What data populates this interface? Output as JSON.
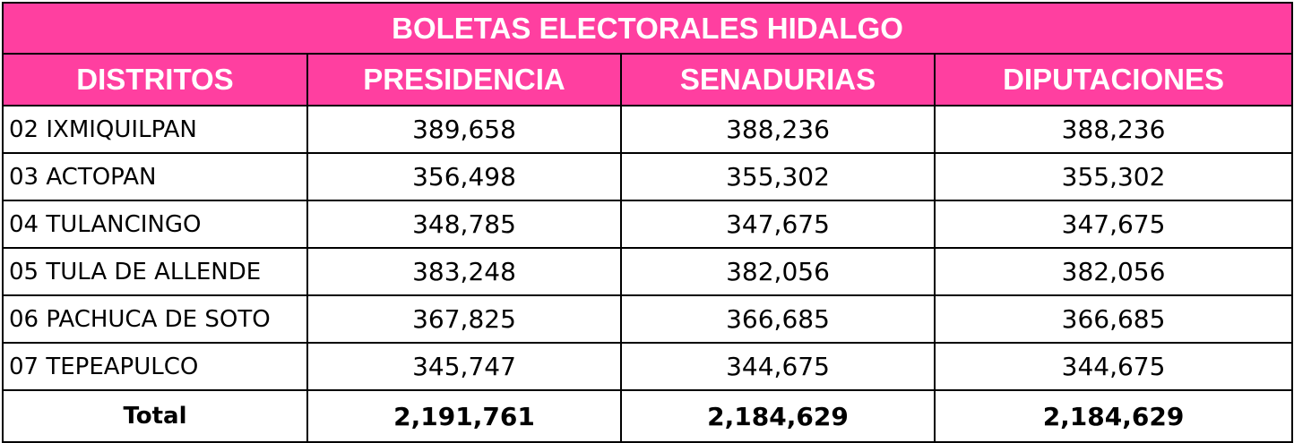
{
  "title": "BOLETAS ELECTORALES HIDALGO",
  "headers": [
    "DISTRITOS",
    "PRESIDENCIA",
    "SENADURIAS",
    "DIPUTACIONES"
  ],
  "rows": [
    {
      "distrito": "02 IXMIQUILPAN",
      "presidencia": "389,658",
      "senadurias": "388,236",
      "diputaciones": "388,236"
    },
    {
      "distrito": "03 ACTOPAN",
      "presidencia": "356,498",
      "senadurias": "355,302",
      "diputaciones": "355,302"
    },
    {
      "distrito": "04 TULANCINGO",
      "presidencia": "348,785",
      "senadurias": "347,675",
      "diputaciones": "347,675"
    },
    {
      "distrito": "05 TULA DE ALLENDE",
      "presidencia": "383,248",
      "senadurias": "382,056",
      "diputaciones": "382,056"
    },
    {
      "distrito": "06 PACHUCA DE SOTO",
      "presidencia": "367,825",
      "senadurias": "366,685",
      "diputaciones": "366,685"
    },
    {
      "distrito": "07 TEPEAPULCO",
      "presidencia": "345,747",
      "senadurias": "344,675",
      "diputaciones": "344,675"
    }
  ],
  "total": {
    "label": "Total",
    "presidencia": "2,191,761",
    "senadurias": "2,184,629",
    "diputaciones": "2,184,629"
  },
  "colors": {
    "header_bg": "#ff3fa0",
    "header_text": "#ffffff",
    "border": "#000000"
  }
}
